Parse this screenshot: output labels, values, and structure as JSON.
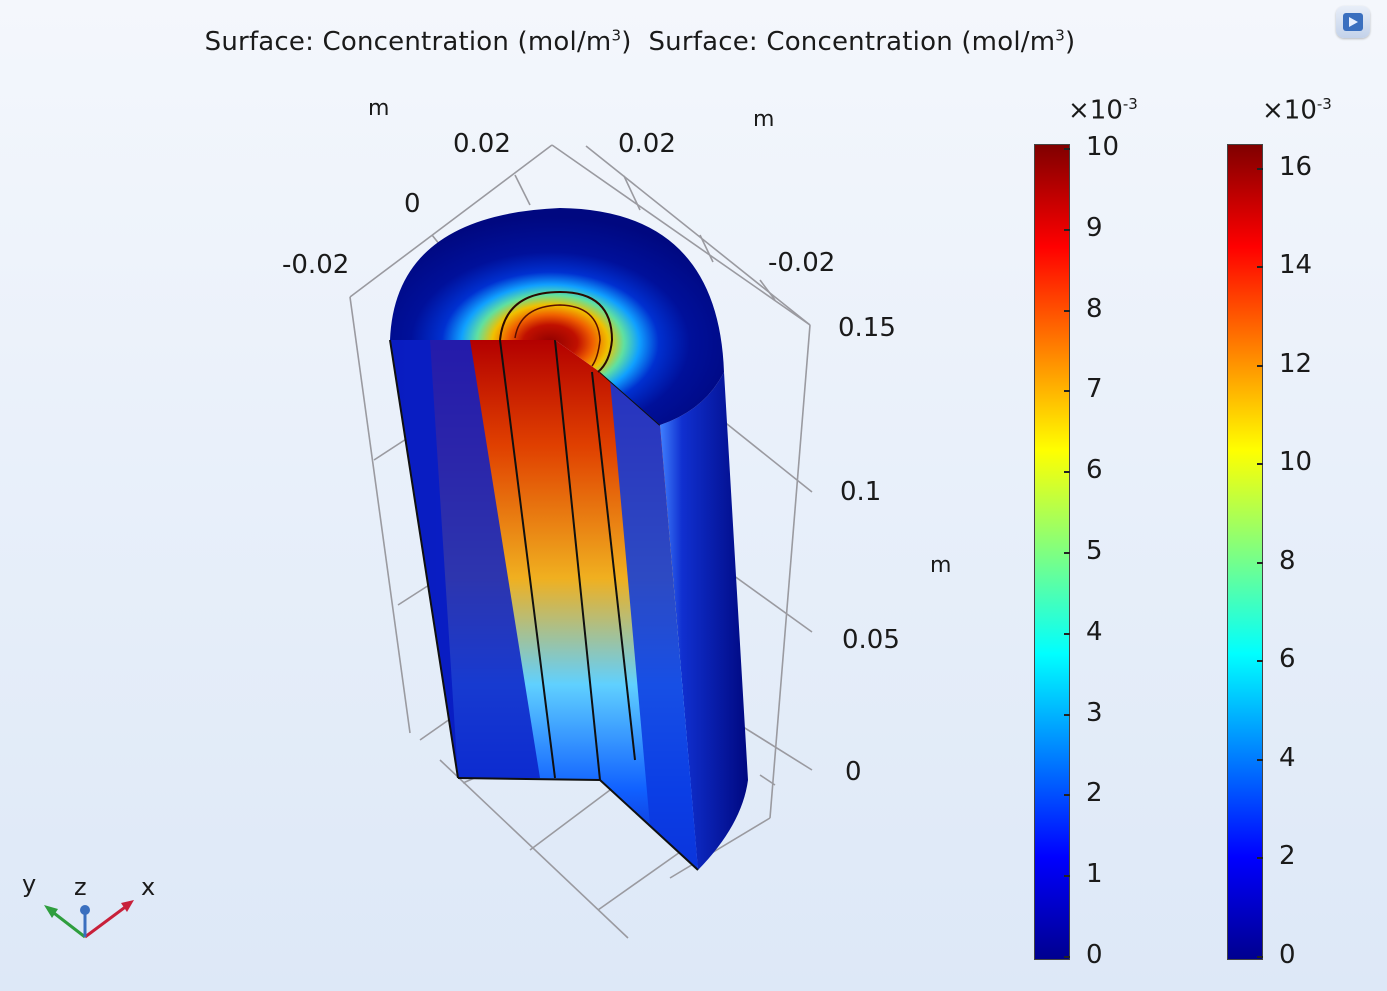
{
  "plot": {
    "title_part1_prefix": "Surface: Concentration (mol/m",
    "title_part1_sup": "3",
    "title_part1_suffix": ")",
    "title_part2_prefix": "Surface: Concentration (mol/m",
    "title_part2_sup": "3",
    "title_part2_suffix": ")"
  },
  "axes": {
    "unit_left": "m",
    "unit_right": "m",
    "unit_vertical": "m",
    "left_ticks": [
      "0.02",
      "0",
      "-0.02"
    ],
    "right_ticks": [
      "0.02",
      "-0.02"
    ],
    "z_ticks": [
      "0.15",
      "0.1",
      "0.05",
      "0"
    ]
  },
  "colorbar_left": {
    "exponent_base": "×10",
    "exponent_power": "-3",
    "ticks": [
      "10",
      "9",
      "8",
      "7",
      "6",
      "5",
      "4",
      "3",
      "2",
      "1",
      "0"
    ],
    "colormap": "rainbow"
  },
  "colorbar_right": {
    "exponent_base": "×10",
    "exponent_power": "-3",
    "ticks": [
      "16",
      "14",
      "12",
      "10",
      "8",
      "6",
      "4",
      "2",
      "0"
    ],
    "colormap": "rainbow"
  },
  "triad": {
    "x": "x",
    "y": "y",
    "z": "z"
  },
  "colors": {
    "dark_blue": "#00008f",
    "deep_red": "#8b0000",
    "x_axis": "#c8203a",
    "y_axis": "#2e9e3e",
    "z_axis": "#3a6fbf"
  },
  "icons": {
    "corner": "graphics-window-icon"
  }
}
